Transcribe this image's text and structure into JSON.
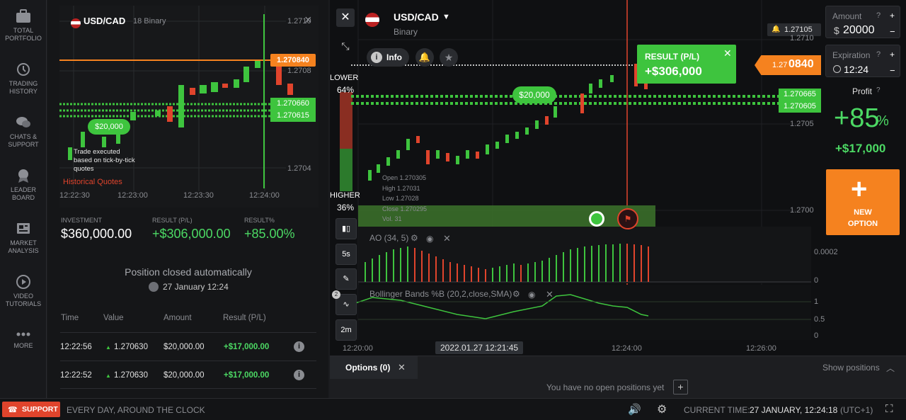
{
  "nav": {
    "items": [
      {
        "label1": "TOTAL",
        "label2": "PORTFOLIO"
      },
      {
        "label1": "TRADING",
        "label2": "HISTORY"
      },
      {
        "label1": "CHATS &",
        "label2": "SUPPORT"
      },
      {
        "label1": "LEADER",
        "label2": "BOARD"
      },
      {
        "label1": "MARKET",
        "label2": "ANALYSIS"
      },
      {
        "label1": "VIDEO",
        "label2": "TUTORIALS"
      },
      {
        "label1": "MORE",
        "label2": ""
      }
    ]
  },
  "panel": {
    "asset": "USD/CAD",
    "asset_type": "18 Binary",
    "close": "×",
    "mini_chart": {
      "prices": [
        "1.2710",
        "1.2708",
        "1.2704"
      ],
      "tag_top": "1.270840",
      "tag_mid1": "1.270660",
      "tag_mid2": "1.270615",
      "bubble": "$20,000",
      "times": [
        "12:22:30",
        "12:23:00",
        "12:23:30",
        "12:24:00"
      ],
      "note1": "Trade executed",
      "note2": "based on tick-by-tick",
      "note3": "quotes",
      "historical": "Historical Quotes"
    },
    "investment_label": "INVESTMENT",
    "investment_value": "$360,000.00",
    "result_label": "RESULT (P/L)",
    "result_value": "+$306,000.00",
    "result_pct_label": "RESULT%",
    "result_pct_value": "+85.00%",
    "closed_text": "Position closed automatically",
    "closed_date": "27 January 12:24",
    "table": {
      "headers": [
        "Time",
        "Value",
        "Amount",
        "Result (P/L)"
      ],
      "rows": [
        {
          "time": "12:22:56",
          "value": "1.270630",
          "amount": "$20,000.00",
          "result": "+$17,000.00"
        },
        {
          "time": "12:22:52",
          "value": "1.270630",
          "amount": "$20,000.00",
          "result": "+$17,000.00"
        }
      ]
    }
  },
  "main": {
    "asset": "USD/CAD",
    "asset_type": "Binary",
    "info_label": "Info",
    "lower_label": "LOWER",
    "lower_pct": "64%",
    "higher_label": "HIGHER",
    "higher_pct": "36%",
    "price_badge": "1.27105",
    "price_axis": [
      "1.2710",
      "1.2705",
      "1.2700"
    ],
    "result_label": "RESULT (P/L)",
    "result_value": "+$306,000",
    "current_price_small": "1.27",
    "current_price_big": "0840",
    "tag_mid1": "1.270665",
    "tag_mid2": "1.270605",
    "bubble": "$20,000",
    "ohlc": {
      "open": "Open  1.270305",
      "high": "High  1.27031",
      "low": "Low  1.27028",
      "close": "Close  1.270295",
      "vol": "Vol.  31"
    },
    "ao_label": "AO (34, 5)",
    "ao_axis": "0.0002",
    "ao_zero": "0",
    "bb_label": "Bollinger Bands %B (20,2,close,SMA)",
    "bb_axis": [
      "1",
      "0.5",
      "0"
    ],
    "bb_count": "2",
    "tools": [
      "5s",
      "2m"
    ],
    "time_axis": [
      "12:20:00",
      "12:24:00",
      "12:26:00"
    ],
    "cursor_time": "2022.01.27 12:21:45"
  },
  "right": {
    "amount_label": "Amount",
    "amount_value": "20000",
    "currency": "$",
    "expiration_label": "Expiration",
    "expiration_value": "12:24",
    "profit_label": "Profit",
    "profit_pct": "+85",
    "profit_pct_sign": "%",
    "profit_value": "+$17,000",
    "new_option_1": "NEW",
    "new_option_2": "OPTION"
  },
  "options": {
    "label": "Options (0)",
    "empty": "You have no open positions yet",
    "show": "Show positions"
  },
  "status": {
    "support": "SUPPORT",
    "slogan": "EVERY DAY, AROUND THE CLOCK",
    "current_time_label": "CURRENT TIME:",
    "current_time_value": "27 JANUARY, 12:24:18",
    "tz": "(UTC+1)"
  },
  "colors": {
    "green": "#3ec43e",
    "orange": "#f5821f",
    "red": "#e0442c"
  }
}
